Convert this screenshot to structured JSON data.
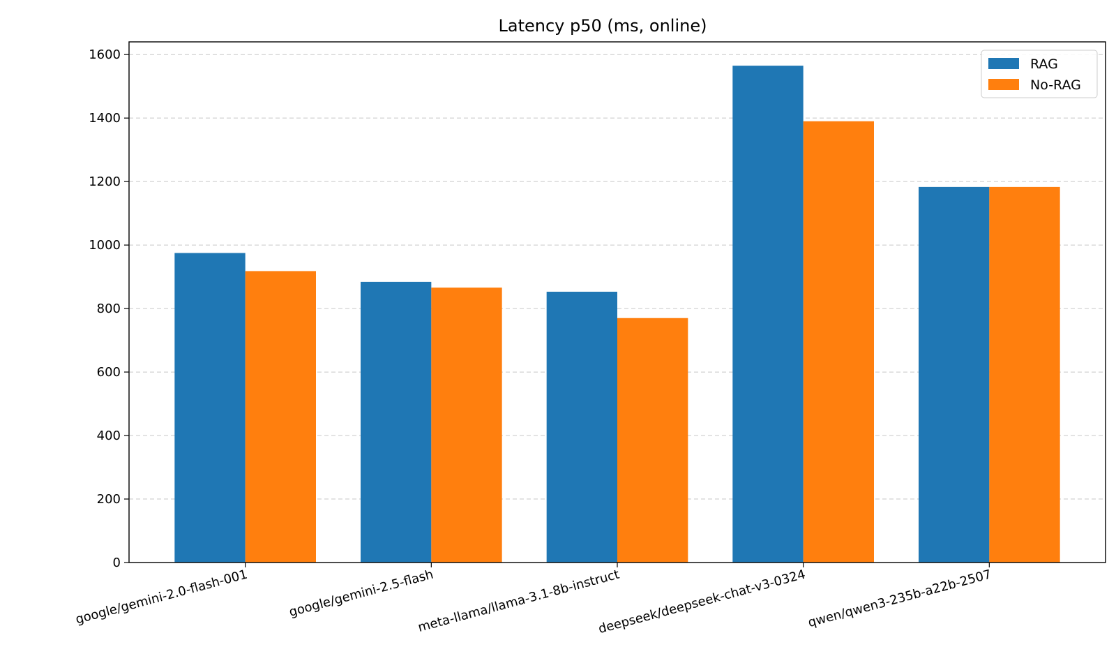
{
  "chart_data": {
    "type": "bar",
    "title": "Latency p50 (ms, online)",
    "xlabel": "",
    "ylabel": "",
    "categories": [
      "google/gemini-2.0-flash-001",
      "google/gemini-2.5-flash",
      "meta-llama/llama-3.1-8b-instruct",
      "deepseek/deepseek-chat-v3-0324",
      "qwen/qwen3-235b-a22b-2507"
    ],
    "series": [
      {
        "name": "RAG",
        "color": "#1f77b4",
        "values": [
          975,
          884,
          853,
          1565,
          1183
        ]
      },
      {
        "name": "No-RAG",
        "color": "#ff7f0e",
        "values": [
          918,
          866,
          770,
          1390,
          1183
        ]
      }
    ],
    "ylim": [
      0,
      1640
    ],
    "yticks": [
      0,
      200,
      400,
      600,
      800,
      1000,
      1200,
      1400,
      1600
    ],
    "grid": true,
    "legend": "top-right"
  }
}
